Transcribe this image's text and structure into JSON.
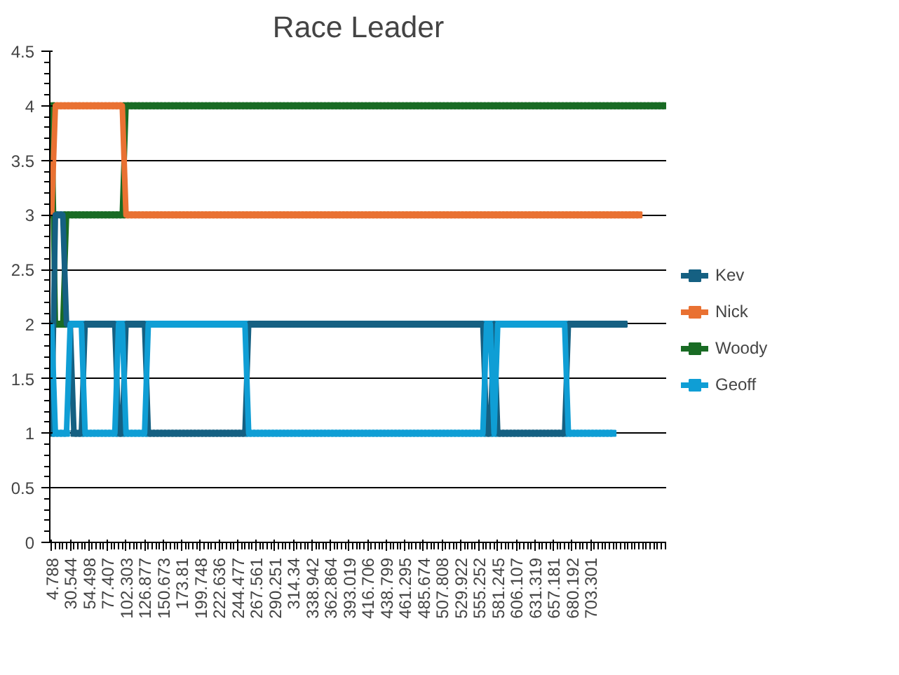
{
  "chart_data": {
    "type": "line",
    "title": "Race Leader",
    "categories": [
      "4.788",
      null,
      null,
      null,
      null,
      "30.544",
      null,
      null,
      null,
      null,
      "54.498",
      null,
      null,
      null,
      null,
      "77.407",
      null,
      null,
      null,
      null,
      "102.303",
      null,
      null,
      null,
      null,
      "126.877",
      null,
      null,
      null,
      null,
      "150.673",
      null,
      null,
      null,
      null,
      "173.81",
      null,
      null,
      null,
      null,
      "199.748",
      null,
      null,
      null,
      null,
      "222.636",
      null,
      null,
      null,
      null,
      "244.477",
      null,
      null,
      null,
      null,
      "267.561",
      null,
      null,
      null,
      null,
      "290.251",
      null,
      null,
      null,
      null,
      "314.34",
      null,
      null,
      null,
      null,
      "338.942",
      null,
      null,
      null,
      null,
      "362.864",
      null,
      null,
      null,
      null,
      "393.019",
      null,
      null,
      null,
      null,
      "416.706",
      null,
      null,
      null,
      null,
      "438.799",
      null,
      null,
      null,
      null,
      "461.295",
      null,
      null,
      null,
      null,
      "485.674",
      null,
      null,
      null,
      null,
      "507.808",
      null,
      null,
      null,
      null,
      "529.922",
      null,
      null,
      null,
      null,
      "555.252",
      null,
      null,
      null,
      null,
      "581.245",
      null,
      null,
      null,
      null,
      "606.107",
      null,
      null,
      null,
      null,
      "631.319",
      null,
      null,
      null,
      null,
      "657.181",
      null,
      null,
      null,
      null,
      "680.192",
      null,
      null,
      null,
      null,
      "703.301",
      null,
      null,
      null,
      null,
      null,
      null,
      null,
      null,
      null,
      null,
      null,
      null,
      null,
      null,
      null,
      null,
      null,
      null,
      null,
      null
    ],
    "series": [
      {
        "name": "Kev",
        "color": "#156082",
        "values": [
          1,
          3,
          3,
          3,
          2,
          2,
          1,
          1,
          1,
          2,
          2,
          2,
          2,
          2,
          2,
          2,
          2,
          2,
          1,
          1,
          2,
          2,
          2,
          2,
          2,
          2,
          1,
          1,
          1,
          1,
          1,
          1,
          1,
          1,
          1,
          1,
          1,
          1,
          1,
          1,
          1,
          1,
          1,
          1,
          1,
          1,
          1,
          1,
          1,
          1,
          1,
          1,
          1,
          2,
          2,
          2,
          2,
          2,
          2,
          2,
          2,
          2,
          2,
          2,
          2,
          2,
          2,
          2,
          2,
          2,
          2,
          2,
          2,
          2,
          2,
          2,
          2,
          2,
          2,
          2,
          2,
          2,
          2,
          2,
          2,
          2,
          2,
          2,
          2,
          2,
          2,
          2,
          2,
          2,
          2,
          2,
          2,
          2,
          2,
          2,
          2,
          2,
          2,
          2,
          2,
          2,
          2,
          2,
          2,
          2,
          2,
          2,
          2,
          2,
          2,
          2,
          2,
          1,
          1,
          2,
          1,
          1,
          1,
          1,
          1,
          1,
          1,
          1,
          1,
          1,
          1,
          1,
          1,
          1,
          1,
          1,
          1,
          1,
          1,
          2,
          2,
          2,
          2,
          2,
          2,
          2,
          2,
          2,
          2,
          2,
          2,
          2,
          2,
          2,
          2,
          null,
          null,
          null,
          null,
          null,
          null,
          null,
          null,
          null,
          null,
          null
        ]
      },
      {
        "name": "Nick",
        "color": "#e97132",
        "values": [
          3,
          4,
          4,
          4,
          4,
          4,
          4,
          4,
          4,
          4,
          4,
          4,
          4,
          4,
          4,
          4,
          4,
          4,
          4,
          4,
          3,
          3,
          3,
          3,
          3,
          3,
          3,
          3,
          3,
          3,
          3,
          3,
          3,
          3,
          3,
          3,
          3,
          3,
          3,
          3,
          3,
          3,
          3,
          3,
          3,
          3,
          3,
          3,
          3,
          3,
          3,
          3,
          3,
          3,
          3,
          3,
          3,
          3,
          3,
          3,
          3,
          3,
          3,
          3,
          3,
          3,
          3,
          3,
          3,
          3,
          3,
          3,
          3,
          3,
          3,
          3,
          3,
          3,
          3,
          3,
          3,
          3,
          3,
          3,
          3,
          3,
          3,
          3,
          3,
          3,
          3,
          3,
          3,
          3,
          3,
          3,
          3,
          3,
          3,
          3,
          3,
          3,
          3,
          3,
          3,
          3,
          3,
          3,
          3,
          3,
          3,
          3,
          3,
          3,
          3,
          3,
          3,
          3,
          3,
          3,
          3,
          3,
          3,
          3,
          3,
          3,
          3,
          3,
          3,
          3,
          3,
          3,
          3,
          3,
          3,
          3,
          3,
          3,
          3,
          3,
          3,
          3,
          3,
          3,
          3,
          3,
          3,
          3,
          3,
          3,
          3,
          3,
          3,
          3,
          3,
          3,
          3,
          3,
          3,
          null,
          null,
          null,
          null,
          null,
          null,
          null
        ]
      },
      {
        "name": "Woody",
        "color": "#196b24",
        "values": [
          4,
          2,
          2,
          2,
          3,
          3,
          3,
          3,
          3,
          3,
          3,
          3,
          3,
          3,
          3,
          3,
          3,
          3,
          3,
          3,
          4,
          4,
          4,
          4,
          4,
          4,
          4,
          4,
          4,
          4,
          4,
          4,
          4,
          4,
          4,
          4,
          4,
          4,
          4,
          4,
          4,
          4,
          4,
          4,
          4,
          4,
          4,
          4,
          4,
          4,
          4,
          4,
          4,
          4,
          4,
          4,
          4,
          4,
          4,
          4,
          4,
          4,
          4,
          4,
          4,
          4,
          4,
          4,
          4,
          4,
          4,
          4,
          4,
          4,
          4,
          4,
          4,
          4,
          4,
          4,
          4,
          4,
          4,
          4,
          4,
          4,
          4,
          4,
          4,
          4,
          4,
          4,
          4,
          4,
          4,
          4,
          4,
          4,
          4,
          4,
          4,
          4,
          4,
          4,
          4,
          4,
          4,
          4,
          4,
          4,
          4,
          4,
          4,
          4,
          4,
          4,
          4,
          4,
          4,
          4,
          4,
          4,
          4,
          4,
          4,
          4,
          4,
          4,
          4,
          4,
          4,
          4,
          4,
          4,
          4,
          4,
          4,
          4,
          4,
          4,
          4,
          4,
          4,
          4,
          4,
          4,
          4,
          4,
          4,
          4,
          4,
          4,
          4,
          4,
          4,
          4,
          4,
          4,
          4,
          4,
          4,
          4,
          4,
          4,
          4,
          4
        ]
      },
      {
        "name": "Geoff",
        "color": "#0f9ed5",
        "values": [
          2,
          1,
          1,
          1,
          1,
          2,
          2,
          2,
          2,
          1,
          1,
          1,
          1,
          1,
          1,
          1,
          1,
          1,
          2,
          2,
          1,
          1,
          1,
          1,
          1,
          1,
          2,
          2,
          2,
          2,
          2,
          2,
          2,
          2,
          2,
          2,
          2,
          2,
          2,
          2,
          2,
          2,
          2,
          2,
          2,
          2,
          2,
          2,
          2,
          2,
          2,
          2,
          2,
          1,
          1,
          1,
          1,
          1,
          1,
          1,
          1,
          1,
          1,
          1,
          1,
          1,
          1,
          1,
          1,
          1,
          1,
          1,
          1,
          1,
          1,
          1,
          1,
          1,
          1,
          1,
          1,
          1,
          1,
          1,
          1,
          1,
          1,
          1,
          1,
          1,
          1,
          1,
          1,
          1,
          1,
          1,
          1,
          1,
          1,
          1,
          1,
          1,
          1,
          1,
          1,
          1,
          1,
          1,
          1,
          1,
          1,
          1,
          1,
          1,
          1,
          1,
          1,
          2,
          2,
          1,
          2,
          2,
          2,
          2,
          2,
          2,
          2,
          2,
          2,
          2,
          2,
          2,
          2,
          2,
          2,
          2,
          2,
          2,
          2,
          1,
          1,
          1,
          1,
          1,
          1,
          1,
          1,
          1,
          1,
          1,
          1,
          1,
          null,
          null,
          null,
          null,
          null,
          null,
          null,
          null,
          null,
          null,
          null,
          null,
          null,
          null
        ]
      }
    ],
    "ylim": [
      0,
      4.5
    ],
    "yticks": [
      0,
      0.5,
      1,
      1.5,
      2,
      2.5,
      3,
      3.5,
      4,
      4.5
    ],
    "grid": "y",
    "legend": "right",
    "marker": "square",
    "line_style": "solid"
  }
}
